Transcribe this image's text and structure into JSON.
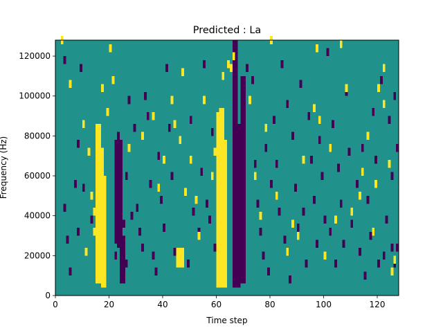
{
  "chart_data": {
    "type": "heatmap",
    "title": "Predicted : La",
    "xlabel": "Time step",
    "ylabel": "Frequency (Hz)",
    "xlim": [
      0,
      128
    ],
    "ylim": [
      0,
      128000
    ],
    "x_ticks": [
      0,
      20,
      40,
      60,
      80,
      100,
      120
    ],
    "y_ticks": [
      0,
      20000,
      40000,
      60000,
      80000,
      100000,
      120000
    ],
    "x_tick_labels": [
      "0",
      "20",
      "40",
      "60",
      "80",
      "100",
      "120"
    ],
    "y_tick_labels": [
      "0",
      "20000",
      "40000",
      "60000",
      "80000",
      "100000",
      "120000"
    ],
    "grid": false,
    "colormap": "viridis",
    "level_colors": {
      "low": "#440154",
      "mid": "#21918c",
      "high": "#fde725"
    },
    "value_levels": [
      0,
      0.5,
      1
    ],
    "background_value": 0.5,
    "cell_size": {
      "dt": 1,
      "df": 2000
    },
    "high_regions": [
      {
        "t": [
          15,
          17
        ],
        "f": [
          6000,
          86000
        ]
      },
      {
        "t": [
          17,
          18
        ],
        "f": [
          4000,
          74000
        ]
      },
      {
        "t": [
          18,
          19
        ],
        "f": [
          4000,
          60000
        ]
      },
      {
        "t": [
          45,
          48
        ],
        "f": [
          14000,
          24000
        ]
      },
      {
        "t": [
          60,
          61
        ],
        "f": [
          4000,
          92000
        ]
      },
      {
        "t": [
          61,
          63
        ],
        "f": [
          4000,
          94000
        ]
      },
      {
        "t": [
          63,
          64
        ],
        "f": [
          4000,
          78000
        ]
      }
    ],
    "high_cells": [
      [
        2,
        126000
      ],
      [
        5,
        104000
      ],
      [
        10,
        84000
      ],
      [
        12,
        70000
      ],
      [
        13,
        48000
      ],
      [
        14,
        40000
      ],
      [
        14,
        30000
      ],
      [
        11,
        20000
      ],
      [
        20,
        122000
      ],
      [
        19,
        90000
      ],
      [
        21,
        106000
      ],
      [
        17,
        102000
      ],
      [
        27,
        72000
      ],
      [
        32,
        78000
      ],
      [
        36,
        88000
      ],
      [
        38,
        52000
      ],
      [
        40,
        66000
      ],
      [
        43,
        96000
      ],
      [
        44,
        84000
      ],
      [
        46,
        76000
      ],
      [
        47,
        110000
      ],
      [
        48,
        50000
      ],
      [
        50,
        66000
      ],
      [
        52,
        46000
      ],
      [
        53,
        28000
      ],
      [
        55,
        96000
      ],
      [
        58,
        58000
      ],
      [
        59,
        70000
      ],
      [
        62,
        108000
      ],
      [
        64,
        114000
      ],
      [
        65,
        112000
      ],
      [
        66,
        118000
      ],
      [
        72,
        96000
      ],
      [
        74,
        58000
      ],
      [
        76,
        38000
      ],
      [
        78,
        82000
      ],
      [
        80,
        126000
      ],
      [
        82,
        48000
      ],
      [
        86,
        20000
      ],
      [
        88,
        34000
      ],
      [
        90,
        28000
      ],
      [
        92,
        66000
      ],
      [
        96,
        92000
      ],
      [
        97,
        122000
      ],
      [
        98,
        86000
      ],
      [
        100,
        18000
      ],
      [
        102,
        72000
      ],
      [
        104,
        36000
      ],
      [
        106,
        124000
      ],
      [
        108,
        102000
      ],
      [
        110,
        40000
      ],
      [
        114,
        60000
      ],
      [
        116,
        78000
      ],
      [
        118,
        30000
      ],
      [
        120,
        102000
      ],
      [
        122,
        94000
      ],
      [
        124,
        64000
      ],
      [
        126,
        16000
      ],
      [
        113,
        48000
      ],
      [
        119,
        54000
      ],
      [
        125,
        10000
      ],
      [
        122,
        112000
      ]
    ],
    "low_cells": [
      [
        3,
        116000
      ],
      [
        3,
        42000
      ],
      [
        4,
        26000
      ],
      [
        5,
        10000
      ],
      [
        7,
        54000
      ],
      [
        8,
        74000
      ],
      [
        8,
        30000
      ],
      [
        9,
        112000
      ],
      [
        10,
        52000
      ],
      [
        13,
        36000
      ],
      [
        16,
        26000
      ],
      [
        22,
        18000
      ],
      [
        22,
        66000
      ],
      [
        23,
        24000
      ],
      [
        23,
        78000
      ],
      [
        24,
        46000
      ],
      [
        25,
        34000
      ],
      [
        26,
        58000
      ],
      [
        26,
        14000
      ],
      [
        27,
        96000
      ],
      [
        28,
        38000
      ],
      [
        29,
        82000
      ],
      [
        30,
        42000
      ],
      [
        31,
        30000
      ],
      [
        32,
        22000
      ],
      [
        33,
        98000
      ],
      [
        34,
        88000
      ],
      [
        35,
        54000
      ],
      [
        36,
        18000
      ],
      [
        37,
        10000
      ],
      [
        38,
        68000
      ],
      [
        39,
        46000
      ],
      [
        40,
        32000
      ],
      [
        41,
        112000
      ],
      [
        42,
        82000
      ],
      [
        43,
        58000
      ],
      [
        44,
        20000
      ],
      [
        49,
        14000
      ],
      [
        50,
        86000
      ],
      [
        51,
        40000
      ],
      [
        53,
        30000
      ],
      [
        54,
        60000
      ],
      [
        55,
        114000
      ],
      [
        56,
        44000
      ],
      [
        57,
        36000
      ],
      [
        58,
        80000
      ],
      [
        59,
        22000
      ],
      [
        66,
        70000
      ],
      [
        67,
        76000
      ],
      [
        71,
        112000
      ],
      [
        73,
        106000
      ],
      [
        74,
        64000
      ],
      [
        75,
        44000
      ],
      [
        76,
        30000
      ],
      [
        77,
        18000
      ],
      [
        78,
        72000
      ],
      [
        79,
        10000
      ],
      [
        80,
        54000
      ],
      [
        81,
        86000
      ],
      [
        82,
        64000
      ],
      [
        83,
        40000
      ],
      [
        84,
        114000
      ],
      [
        85,
        26000
      ],
      [
        86,
        94000
      ],
      [
        87,
        6000
      ],
      [
        88,
        78000
      ],
      [
        89,
        52000
      ],
      [
        90,
        32000
      ],
      [
        91,
        104000
      ],
      [
        92,
        40000
      ],
      [
        93,
        14000
      ],
      [
        94,
        88000
      ],
      [
        95,
        66000
      ],
      [
        96,
        46000
      ],
      [
        97,
        24000
      ],
      [
        98,
        76000
      ],
      [
        99,
        58000
      ],
      [
        100,
        36000
      ],
      [
        101,
        120000
      ],
      [
        102,
        30000
      ],
      [
        103,
        84000
      ],
      [
        104,
        14000
      ],
      [
        105,
        62000
      ],
      [
        106,
        44000
      ],
      [
        107,
        24000
      ],
      [
        108,
        100000
      ],
      [
        109,
        70000
      ],
      [
        110,
        34000
      ],
      [
        112,
        54000
      ],
      [
        113,
        20000
      ],
      [
        114,
        72000
      ],
      [
        115,
        8000
      ],
      [
        116,
        46000
      ],
      [
        117,
        28000
      ],
      [
        118,
        90000
      ],
      [
        119,
        66000
      ],
      [
        120,
        14000
      ],
      [
        121,
        106000
      ],
      [
        122,
        18000
      ],
      [
        123,
        36000
      ],
      [
        124,
        86000
      ],
      [
        125,
        58000
      ],
      [
        126,
        98000
      ],
      [
        127,
        72000
      ],
      [
        126,
        14000
      ],
      [
        125,
        22000
      ],
      [
        127,
        22000
      ]
    ],
    "low_regions": [
      {
        "t": [
          22,
          25
        ],
        "f": [
          26000,
          78000
        ]
      },
      {
        "t": [
          24,
          26
        ],
        "f": [
          6000,
          30000
        ]
      },
      {
        "t": [
          66,
          69
        ],
        "f": [
          4000,
          86000
        ]
      },
      {
        "t": [
          69,
          71
        ],
        "f": [
          6000,
          110000
        ]
      },
      {
        "t": [
          66,
          68
        ],
        "f": [
          76000,
          128000
        ]
      }
    ]
  }
}
